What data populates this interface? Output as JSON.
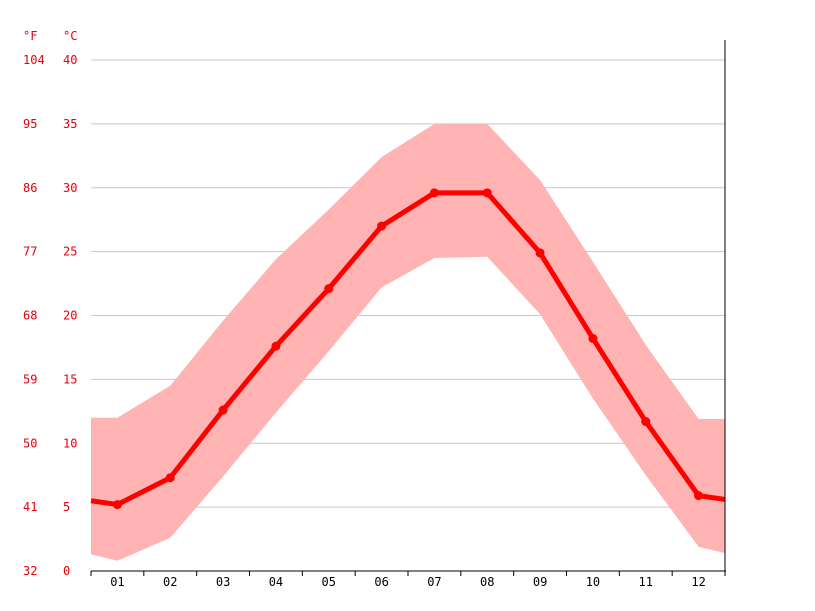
{
  "chart_data": {
    "type": "line",
    "title": "",
    "xlabel": "",
    "ylabel": "",
    "units": {
      "left": "°F",
      "right": "°C"
    },
    "categories": [
      "01",
      "02",
      "03",
      "04",
      "05",
      "06",
      "07",
      "08",
      "09",
      "10",
      "11",
      "12"
    ],
    "ylim": [
      0,
      40
    ],
    "y_ticks_c": [
      0,
      5,
      10,
      15,
      20,
      25,
      30,
      35,
      40
    ],
    "y_ticks_f": [
      "32",
      "41",
      "50",
      "59",
      "68",
      "77",
      "86",
      "95",
      "104"
    ],
    "grid": true,
    "series": [
      {
        "role": "mean",
        "values": [
          5.2,
          7.3,
          12.6,
          17.6,
          22.1,
          27.0,
          29.6,
          29.6,
          24.9,
          18.2,
          11.7,
          5.9
        ]
      },
      {
        "role": "max",
        "values": [
          12.0,
          14.5,
          19.6,
          24.4,
          28.3,
          32.4,
          35.0,
          35.0,
          30.6,
          24.2,
          17.7,
          11.9
        ]
      },
      {
        "role": "min",
        "values": [
          0.8,
          2.6,
          7.4,
          12.4,
          17.2,
          22.2,
          24.5,
          24.6,
          20.1,
          13.5,
          7.5,
          1.9
        ]
      }
    ],
    "colors": {
      "line": "#ff0000",
      "band": "#ffb3b3",
      "tick_label": "#e8000b",
      "grid": "#c8c8c8",
      "axis": "#000000"
    }
  }
}
